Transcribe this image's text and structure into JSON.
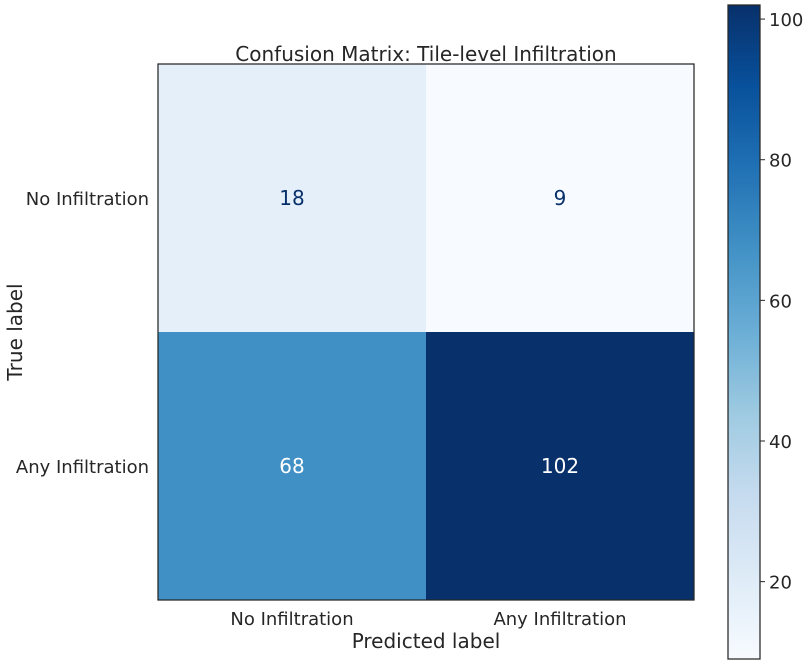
{
  "chart_data": {
    "type": "heatmap",
    "title": "Confusion Matrix: Tile-level Infiltration",
    "xlabel": "Predicted label",
    "ylabel": "True label",
    "x_categories": [
      "No Infiltration",
      "Any Infiltration"
    ],
    "y_categories": [
      "No Infiltration",
      "Any Infiltration"
    ],
    "values": [
      [
        18,
        9
      ],
      [
        68,
        102
      ]
    ],
    "colormap": "Blues",
    "colorbar": {
      "min": 9,
      "max": 102,
      "ticks": [
        20,
        40,
        60,
        80,
        100
      ]
    },
    "grid": false,
    "text_colors": {
      "dark": "#08306b",
      "light": "#ffffff"
    }
  }
}
